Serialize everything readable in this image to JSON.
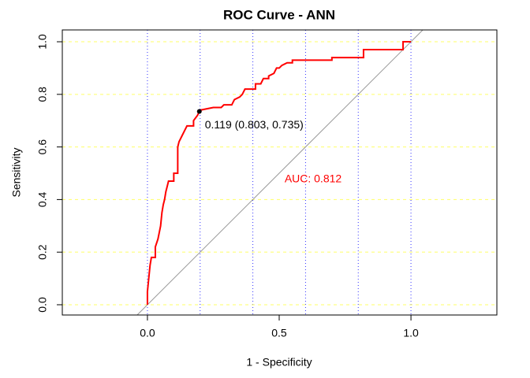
{
  "chart_data": {
    "type": "line",
    "title": "ROC Curve - ANN",
    "x_label": "1 - Specificity",
    "y_label": "Sensitivity",
    "xlim": [
      -0.323,
      1.326
    ],
    "ylim": [
      -0.039,
      1.045
    ],
    "xticks": [
      {
        "value": 0,
        "label": "0.0"
      },
      0.5,
      {
        "value": 1,
        "label": "1.0"
      }
    ],
    "yticks": [
      {
        "value": 0,
        "label": "0.0"
      },
      0.2,
      0.4,
      0.6,
      0.8,
      {
        "value": 1,
        "label": "1.0"
      }
    ],
    "xgrid": [
      0,
      0.2,
      0.4,
      0.6,
      0.8,
      1
    ],
    "xgrid_color": "#3333ff",
    "ygrid_color": "#ffff66",
    "diagonal_color": "#999999",
    "series": [
      {
        "name": "ANN",
        "color": "#ff0000",
        "x": [
          0,
          0,
          0.005,
          0.01,
          0.015,
          0.03,
          0.03,
          0.04,
          0.05,
          0.055,
          0.06,
          0.065,
          0.07,
          0.075,
          0.08,
          0.1,
          0.1,
          0.115,
          0.115,
          0.12,
          0.13,
          0.14,
          0.15,
          0.175,
          0.175,
          0.19,
          0.197,
          0.2,
          0.2,
          0.25,
          0.28,
          0.29,
          0.32,
          0.33,
          0.35,
          0.36,
          0.37,
          0.41,
          0.41,
          0.43,
          0.44,
          0.46,
          0.46,
          0.48,
          0.49,
          0.5,
          0.51,
          0.53,
          0.55,
          0.55,
          0.7,
          0.7,
          0.82,
          0.82,
          0.97,
          0.97,
          1
        ],
        "values": [
          0,
          0.05,
          0.1,
          0.15,
          0.18,
          0.18,
          0.22,
          0.25,
          0.3,
          0.35,
          0.38,
          0.4,
          0.43,
          0.45,
          0.47,
          0.47,
          0.5,
          0.5,
          0.6,
          0.62,
          0.64,
          0.66,
          0.68,
          0.68,
          0.7,
          0.72,
          0.735,
          0.735,
          0.74,
          0.75,
          0.75,
          0.76,
          0.76,
          0.78,
          0.79,
          0.8,
          0.82,
          0.82,
          0.84,
          0.84,
          0.86,
          0.86,
          0.87,
          0.88,
          0.9,
          0.9,
          0.91,
          0.92,
          0.92,
          0.93,
          0.93,
          0.94,
          0.94,
          0.97,
          0.97,
          1,
          1
        ]
      }
    ],
    "threshold_point": {
      "x": 0.197,
      "y": 0.735,
      "label": "0.119 (0.803, 0.735)"
    },
    "auc_label": {
      "text": "AUC: 0.812",
      "color": "#ff0000"
    }
  }
}
